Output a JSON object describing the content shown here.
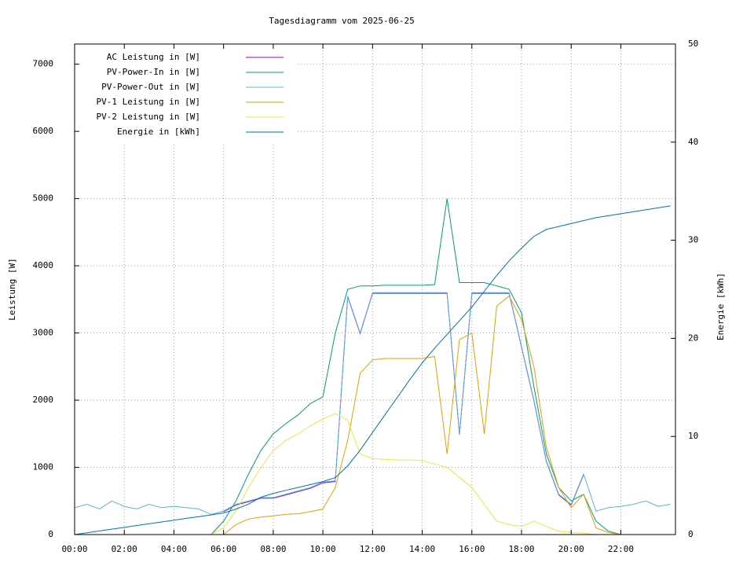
{
  "chart_data": {
    "type": "line",
    "title": "Tagesdiagramm vom 2025-06-25",
    "y_label": "Leistung [W]",
    "y2_label": "Energie [kWh]",
    "x": [
      0,
      0.5,
      1,
      1.5,
      2,
      2.5,
      3,
      3.5,
      4,
      4.5,
      5,
      5.5,
      6,
      6.5,
      7,
      7.5,
      8,
      8.5,
      9,
      9.5,
      10,
      10.5,
      11,
      11.5,
      12,
      12.5,
      13,
      13.5,
      14,
      14.5,
      15,
      15.5,
      16,
      16.5,
      17,
      17.5,
      18,
      18.5,
      19,
      19.5,
      20,
      20.5,
      21,
      21.5,
      22,
      22.5,
      23,
      23.5,
      24
    ],
    "xlim": [
      0,
      24.2
    ],
    "xticks": [
      {
        "value": 0,
        "label": "00:00"
      },
      {
        "value": 2,
        "label": "02:00"
      },
      {
        "value": 4,
        "label": "04:00"
      },
      {
        "value": 6,
        "label": "06:00"
      },
      {
        "value": 8,
        "label": "08:00"
      },
      {
        "value": 10,
        "label": "10:00"
      },
      {
        "value": 12,
        "label": "12:00"
      },
      {
        "value": 14,
        "label": "14:00"
      },
      {
        "value": 16,
        "label": "16:00"
      },
      {
        "value": 18,
        "label": "18:00"
      },
      {
        "value": 20,
        "label": "20:00"
      },
      {
        "value": 22,
        "label": "22:00"
      }
    ],
    "ylim": [
      0,
      7300
    ],
    "yticks": [
      0,
      1000,
      2000,
      3000,
      4000,
      5000,
      6000,
      7000
    ],
    "y2lim": [
      0,
      50
    ],
    "y2ticks": [
      0,
      10,
      20,
      30,
      40,
      50
    ],
    "grid": true,
    "legend": "top-left",
    "series": [
      {
        "name": "AC Leistung in [W]",
        "color": "#9400d3",
        "values": [
          null,
          null,
          null,
          null,
          null,
          null,
          null,
          null,
          null,
          null,
          null,
          null,
          340,
          440,
          490,
          540,
          540,
          590,
          640,
          690,
          770,
          790,
          3540,
          2990,
          3590,
          3590,
          3590,
          3590,
          3590,
          3590,
          3590,
          1490,
          3590,
          3590,
          3590,
          3590,
          2790,
          1990,
          1090,
          590,
          440,
          890,
          null,
          null,
          null,
          null,
          null,
          null,
          null
        ]
      },
      {
        "name": "PV-Power-In in [W]",
        "color": "#009e73",
        "values": [
          0,
          0,
          0,
          0,
          0,
          0,
          0,
          0,
          0,
          0,
          0,
          0,
          200,
          500,
          900,
          1250,
          1500,
          1650,
          1780,
          1950,
          2050,
          3000,
          3650,
          3700,
          3700,
          3710,
          3710,
          3710,
          3710,
          3720,
          5000,
          3750,
          3750,
          3750,
          3700,
          3650,
          3300,
          2200,
          1200,
          700,
          500,
          600,
          200,
          50,
          0,
          0,
          0,
          0,
          0
        ]
      },
      {
        "name": "PV-Power-Out in [W]",
        "color": "#56b4e9",
        "values": [
          400,
          450,
          380,
          500,
          420,
          380,
          450,
          400,
          420,
          400,
          380,
          300,
          350,
          450,
          500,
          550,
          550,
          600,
          650,
          700,
          780,
          800,
          3550,
          3000,
          3600,
          3600,
          3600,
          3600,
          3600,
          3600,
          3600,
          1500,
          3600,
          3600,
          3600,
          3600,
          2800,
          2000,
          1100,
          600,
          450,
          900,
          350,
          400,
          420,
          450,
          500,
          420,
          450
        ]
      },
      {
        "name": "PV-1 Leistung in [W]",
        "color": "#e69f00",
        "values": [
          0,
          0,
          0,
          0,
          0,
          0,
          0,
          0,
          0,
          0,
          0,
          0,
          0,
          150,
          230,
          260,
          280,
          300,
          310,
          340,
          380,
          700,
          1400,
          2400,
          2600,
          2620,
          2620,
          2620,
          2620,
          2650,
          1200,
          2900,
          3000,
          1500,
          3400,
          3550,
          3200,
          2500,
          1300,
          700,
          400,
          600,
          100,
          30,
          0,
          0,
          0,
          0,
          0
        ]
      },
      {
        "name": "PV-2 Leistung in [W]",
        "color": "#f0e442",
        "values": [
          0,
          0,
          0,
          0,
          0,
          0,
          0,
          0,
          0,
          0,
          0,
          0,
          100,
          350,
          700,
          1000,
          1250,
          1400,
          1500,
          1620,
          1720,
          1800,
          1700,
          1200,
          1130,
          1120,
          1110,
          1110,
          1100,
          1050,
          1000,
          850,
          700,
          450,
          200,
          150,
          120,
          200,
          120,
          50,
          30,
          20,
          0,
          0,
          0,
          0,
          0,
          0,
          0
        ]
      },
      {
        "name": "Energie in [kWh]",
        "color": "#0072b2",
        "axis": "y2",
        "values": [
          0,
          0.18,
          0.37,
          0.55,
          0.73,
          0.92,
          1.1,
          1.28,
          1.47,
          1.65,
          1.83,
          2.0,
          2.2,
          2.6,
          3.1,
          3.8,
          4.2,
          4.5,
          4.8,
          5.1,
          5.4,
          5.8,
          7.0,
          8.6,
          10.4,
          12.2,
          14.0,
          15.8,
          17.5,
          19.0,
          20.4,
          21.8,
          23.2,
          24.8,
          26.4,
          27.9,
          29.2,
          30.4,
          31.1,
          31.4,
          31.7,
          32.0,
          32.3,
          32.5,
          32.7,
          32.9,
          33.1,
          33.3,
          33.5
        ]
      }
    ]
  }
}
